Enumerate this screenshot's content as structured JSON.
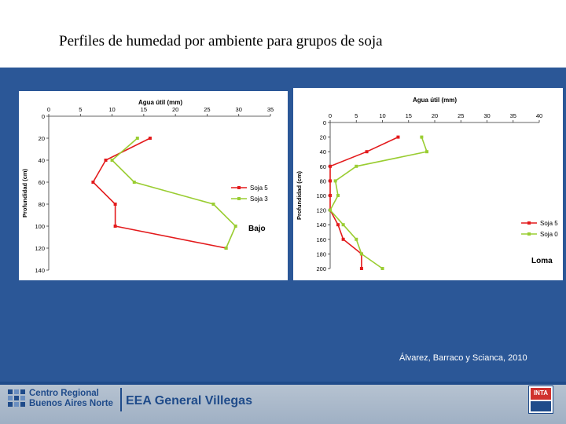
{
  "slide": {
    "title": "Perfiles de humedad por ambiente para grupos de soja",
    "credit": "Álvarez, Barraco y Scianca, 2010"
  },
  "footer": {
    "center_name_line1": "Centro Regional",
    "center_name_line2": "Buenos Aires Norte",
    "station": "EEA General Villegas",
    "logo_text": "INTA"
  },
  "colors": {
    "background_band": "#2b5797",
    "soja5": "#e31a1c",
    "soja3": "#9acd32",
    "soja0": "#9acd32"
  },
  "chart_data": [
    {
      "type": "line",
      "title": "Agua útil (mm)",
      "xlabel": "Agua útil (mm)",
      "ylabel": "Profundidad (cm)",
      "x_ticks": [
        "0",
        "5",
        "10",
        "15",
        "20",
        "25",
        "30",
        "35"
      ],
      "y_ticks": [
        "0",
        "20",
        "40",
        "60",
        "80",
        "100",
        "120",
        "140"
      ],
      "xlim": [
        0,
        35
      ],
      "ylim": [
        0,
        140
      ],
      "x_axis_position": "top",
      "y_reversed": true,
      "legend": "right",
      "annotation": "Bajo",
      "series": [
        {
          "name": "Soja 5",
          "color": "#e31a1c",
          "points": [
            [
              16,
              20
            ],
            [
              9,
              40
            ],
            [
              7,
              60
            ],
            [
              10.5,
              80
            ],
            [
              10.5,
              100
            ],
            [
              28,
              120
            ]
          ]
        },
        {
          "name": "Soja 3",
          "color": "#9acd32",
          "points": [
            [
              14,
              20
            ],
            [
              10,
              40
            ],
            [
              13.5,
              60
            ],
            [
              26,
              80
            ],
            [
              29.5,
              100
            ],
            [
              28,
              120
            ]
          ]
        }
      ]
    },
    {
      "type": "line",
      "title": "Agua útil (mm)",
      "xlabel": "Agua útil (mm)",
      "ylabel": "Profundidad (cm)",
      "x_ticks": [
        "0",
        "5",
        "10",
        "15",
        "20",
        "25",
        "30",
        "35",
        "40"
      ],
      "y_ticks": [
        "0",
        "20",
        "40",
        "60",
        "80",
        "100",
        "120",
        "140",
        "160",
        "180",
        "200"
      ],
      "xlim": [
        0,
        40
      ],
      "ylim": [
        0,
        200
      ],
      "x_axis_position": "top",
      "y_reversed": true,
      "legend": "right",
      "annotation": "Loma",
      "series": [
        {
          "name": "Soja 5",
          "color": "#e31a1c",
          "points": [
            [
              13,
              20
            ],
            [
              7,
              40
            ],
            [
              0,
              60
            ],
            [
              0,
              80
            ],
            [
              0,
              100
            ],
            [
              0,
              120
            ],
            [
              1.5,
              140
            ],
            [
              2.5,
              160
            ],
            [
              6,
              180
            ],
            [
              6,
              200
            ]
          ]
        },
        {
          "name": "Soja 0",
          "color": "#9acd32",
          "points": [
            [
              17.5,
              20
            ],
            [
              18.5,
              40
            ],
            [
              5,
              60
            ],
            [
              1,
              80
            ],
            [
              1.5,
              100
            ],
            [
              0,
              120
            ],
            [
              2.5,
              140
            ],
            [
              5,
              160
            ],
            [
              6,
              180
            ],
            [
              10,
              200
            ]
          ]
        }
      ]
    }
  ]
}
